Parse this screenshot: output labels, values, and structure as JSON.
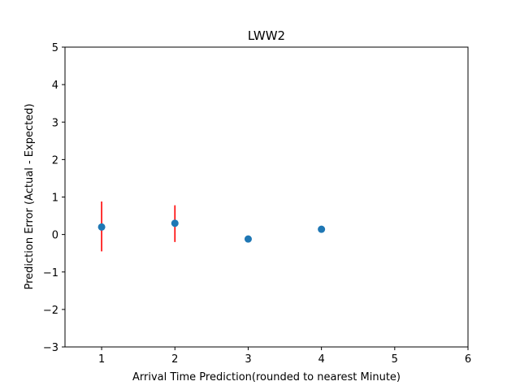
{
  "chart_data": {
    "type": "scatter",
    "title": "LWW2",
    "xlabel": "Arrival Time Prediction(rounded to nearest Minute)",
    "ylabel": "Prediction Error (Actual - Expected)",
    "xlim": [
      0.5,
      6
    ],
    "ylim": [
      -3,
      5
    ],
    "x_ticks": [
      1,
      2,
      3,
      4,
      5,
      6
    ],
    "y_ticks": [
      -3,
      -2,
      -1,
      0,
      1,
      2,
      3,
      4,
      5
    ],
    "grid": false,
    "points": [
      {
        "x": 1,
        "y": 0.2,
        "err_low": -0.45,
        "err_high": 0.88
      },
      {
        "x": 2,
        "y": 0.3,
        "err_low": -0.2,
        "err_high": 0.78
      },
      {
        "x": 3,
        "y": -0.12
      },
      {
        "x": 4,
        "y": 0.14
      }
    ],
    "colors": {
      "marker": "#1f77b4",
      "errorbar": "#ff0000",
      "axes": "#000000"
    }
  }
}
